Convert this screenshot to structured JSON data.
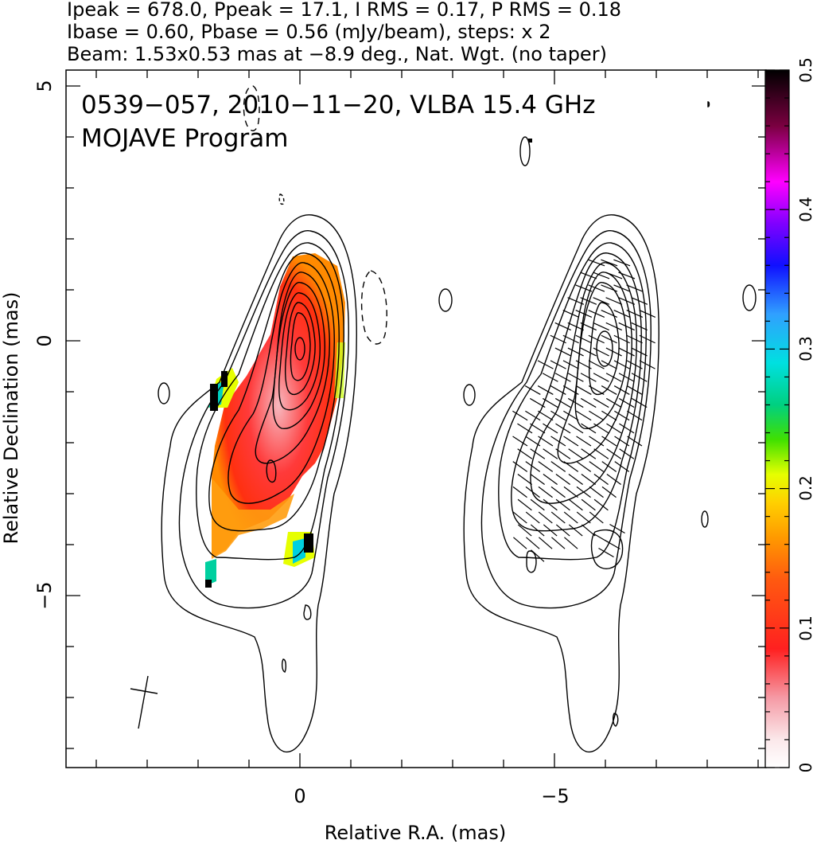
{
  "header": {
    "line1": "Ipeak = 678.0, Ppeak = 17.1, I RMS = 0.17, P RMS = 0.18",
    "line2": "Ibase = 0.60, Pbase = 0.56 (mJy/beam), steps: x 2",
    "line3": "Beam: 1.53x0.53 mas at −8.9 deg., Nat. Wgt. (no taper)"
  },
  "annotation": {
    "source_line": "0539−057, 2010−11−20, VLBA 15.4 GHz",
    "program_line": "MOJAVE Program"
  },
  "beam": {
    "major_mas": 1.53,
    "minor_mas": 0.53,
    "pa_deg": -8.9
  },
  "chart_data": {
    "type": "heatmap",
    "title": "",
    "xlabel": "Relative R.A. (mas)",
    "ylabel": "Relative Declination (mas)",
    "x_tick_labels": [
      {
        "value": 0,
        "label": "0"
      },
      {
        "value": -5,
        "label": "−5"
      }
    ],
    "y_tick_labels": [
      {
        "value": 5,
        "label": "5"
      },
      {
        "value": 0,
        "label": "0"
      },
      {
        "value": -5,
        "label": "−5"
      }
    ],
    "colorbar": {
      "range": [
        0,
        0.5
      ],
      "tick_labels": [
        {
          "value": 0,
          "label": "0"
        },
        {
          "value": 0.1,
          "label": "0.1"
        },
        {
          "value": 0.2,
          "label": "0.2"
        },
        {
          "value": 0.3,
          "label": "0.3"
        },
        {
          "value": 0.4,
          "label": "0.4"
        },
        {
          "value": 0.5,
          "label": "0.5"
        }
      ]
    },
    "panels": [
      {
        "content": "total intensity contours with fractional polarization color"
      },
      {
        "content": "total intensity contours with EVPA ticks"
      }
    ]
  }
}
